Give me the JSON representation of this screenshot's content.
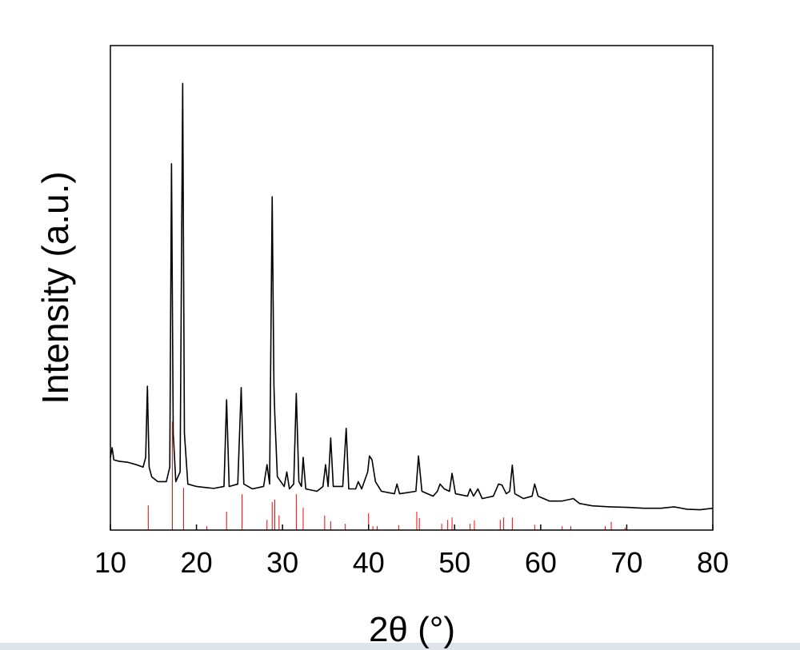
{
  "chart_data": {
    "type": "line",
    "xlabel": "2θ (°)",
    "ylabel": "Intensity (a.u.)",
    "xlim": [
      10,
      80
    ],
    "xticks": [
      10,
      20,
      30,
      40,
      50,
      60,
      70,
      80
    ],
    "ylim": [
      0,
      100
    ],
    "series": [
      {
        "color": "#000000",
        "style": "line",
        "x": [
          10.0,
          10.2,
          10.4,
          11,
          12,
          13,
          13.8,
          14.1,
          14.3,
          14.5,
          14.8,
          15.5,
          16.5,
          16.9,
          17.1,
          17.3,
          17.6,
          18.1,
          18.4,
          18.6,
          19.0,
          20,
          21,
          22,
          23.2,
          23.5,
          23.8,
          24.8,
          25.2,
          25.5,
          26.5,
          27.8,
          28.2,
          28.5,
          28.8,
          29.0,
          29.1,
          29.4,
          30.2,
          30.5,
          30.8,
          31.3,
          31.6,
          31.9,
          32.2,
          32.4,
          32.7,
          34.0,
          34.7,
          35.0,
          35.3,
          35.6,
          35.9,
          37.0,
          37.4,
          37.7,
          38.5,
          38.8,
          39.2,
          39.9,
          40.1,
          40.4,
          40.8,
          41.5,
          43.0,
          43.3,
          43.6,
          45.5,
          45.8,
          46.2,
          47.5,
          48.0,
          48.3,
          48.8,
          49.4,
          49.7,
          50.1,
          51.5,
          51.8,
          52.2,
          52.7,
          53.2,
          54.5,
          55.1,
          55.5,
          56.0,
          56.4,
          56.7,
          57.0,
          58.0,
          59.0,
          59.3,
          59.7,
          61,
          62.5,
          63.8,
          64.5,
          66,
          68,
          70,
          72,
          74,
          75.5,
          77,
          78.5,
          80
        ],
        "values": [
          15,
          17,
          14.5,
          14.2,
          14,
          13.5,
          13,
          15,
          29.7,
          13,
          11,
          10,
          10,
          13,
          75.6,
          20,
          10,
          12,
          92.2,
          20,
          9.5,
          9,
          8.8,
          8.6,
          9,
          26.9,
          9,
          9.5,
          29.4,
          9.5,
          8.5,
          9,
          13.5,
          9.5,
          68.8,
          30,
          24,
          11,
          9,
          12,
          8.5,
          9.5,
          28.2,
          10,
          9,
          15,
          8.5,
          8,
          9,
          13.5,
          9,
          19,
          9,
          9,
          21,
          8.5,
          8.5,
          10,
          8.5,
          12,
          15.3,
          14.5,
          10,
          8,
          7.5,
          9.5,
          7.5,
          8,
          15.3,
          8,
          7,
          8,
          9.5,
          8.5,
          8,
          11.7,
          7.5,
          7,
          8.5,
          7,
          8.5,
          6.5,
          7,
          9.5,
          9.3,
          7.5,
          8,
          13.4,
          7.5,
          6.5,
          7,
          9.5,
          7,
          6,
          6,
          6.5,
          5.5,
          5,
          4.8,
          4.7,
          4.5,
          4.5,
          4.8,
          4.3,
          4.2,
          4.5
        ]
      },
      {
        "color": "#ff0000",
        "style": "stick",
        "x": [
          14.4,
          17.2,
          18.5,
          21.2,
          23.5,
          25.3,
          28.2,
          28.8,
          29.1,
          29.6,
          31.6,
          32.4,
          34.9,
          35.6,
          37.3,
          40.0,
          40.5,
          41.0,
          43.5,
          45.6,
          45.9,
          48.5,
          49.2,
          49.7,
          51.8,
          52.3,
          55.3,
          55.7,
          56.7,
          59.3,
          60.0,
          62.5,
          63.5,
          67.5,
          68.2,
          69.8
        ],
        "values": [
          5.1,
          22.4,
          8.7,
          0.8,
          3.8,
          7.4,
          2.1,
          5.8,
          6.3,
          3,
          7.4,
          4.6,
          3,
          1.8,
          1.3,
          3.5,
          0.8,
          0.8,
          1,
          3.8,
          2.5,
          1.3,
          2.1,
          2.6,
          1.3,
          2,
          2.1,
          2.6,
          2.6,
          1.1,
          1,
          0.8,
          0.8,
          0.8,
          1.7,
          0.5
        ]
      }
    ]
  }
}
